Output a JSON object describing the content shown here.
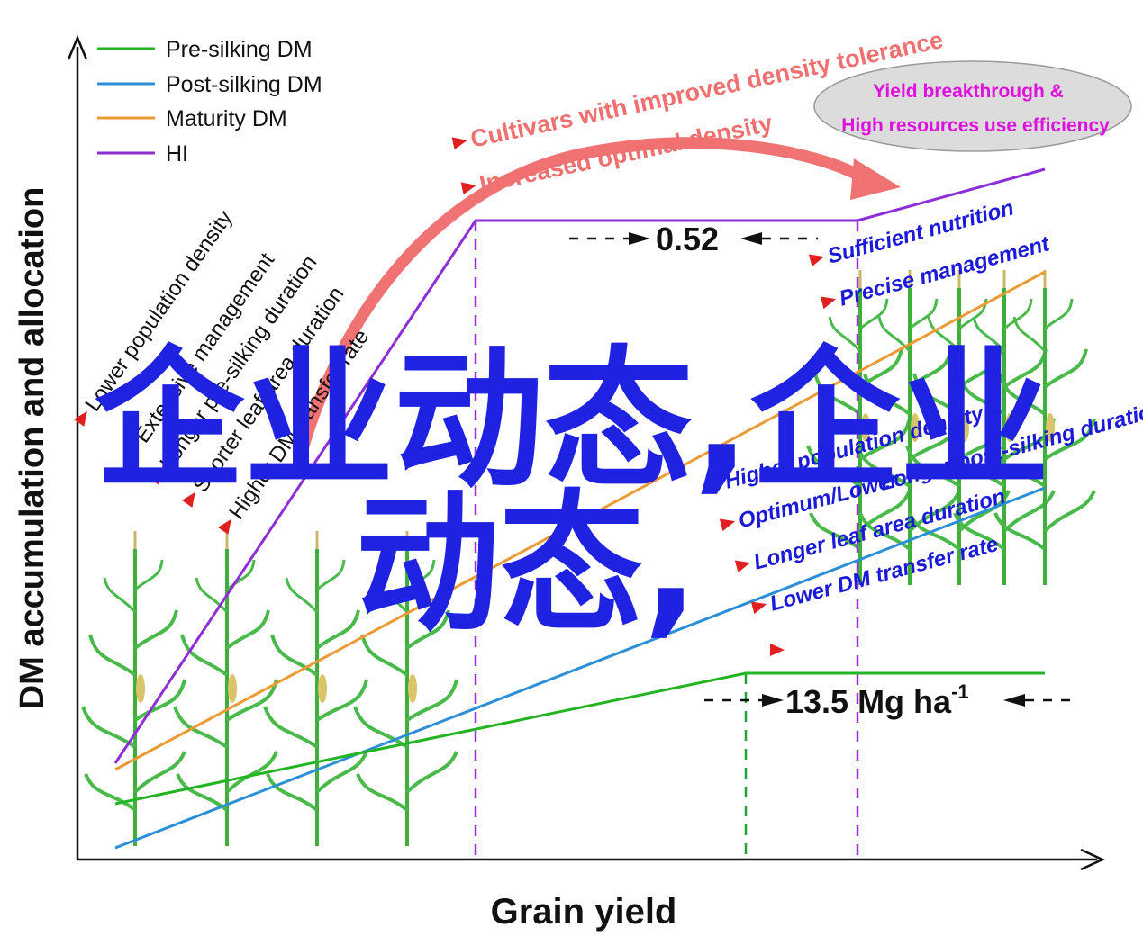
{
  "axes": {
    "x_title": "Grain yield",
    "y_title": "DM accumulation and allocation"
  },
  "legend": [
    {
      "label": "Pre-silking DM",
      "color": "#22b422"
    },
    {
      "label": "Post-silking DM",
      "color": "#2b8fd8"
    },
    {
      "label": "Maturity DM",
      "color": "#ec9a34"
    },
    {
      "label": "HI",
      "color": "#8e2ed6"
    }
  ],
  "left_factors": [
    "Lower population density",
    "Extensive management",
    "Longer pre-silking duration",
    "Shorter leaf area duration",
    "Higher DM transfer rate"
  ],
  "right_factors": [
    "Sufficient nutrition",
    "Precise management",
    "Higher population density",
    "Optimum/Lower",
    "Longer  post-silking duration",
    "Longer leaf area duration",
    "Lower DM transfer rate"
  ],
  "top_labels": [
    "Cultivars with improved density tolerance",
    "Increased optimal density"
  ],
  "ellipse": {
    "line1": "Yield breakthrough &",
    "line2": "High resources use efficiency"
  },
  "values": {
    "hi_value": "0.52",
    "yield_value": "13.5 Mg ha",
    "yield_exponent": "-1"
  },
  "watermark": {
    "line1": "企业动态,企业",
    "line2": "动态,"
  },
  "colors": {
    "pre_silking": "#22b422",
    "post_silking": "#2b8fd8",
    "maturity": "#ec9a34",
    "hi": "#8e2ed6",
    "arrow": "#f07272",
    "right_text": "#1a1ad8",
    "watermark": "#1f22e0"
  }
}
